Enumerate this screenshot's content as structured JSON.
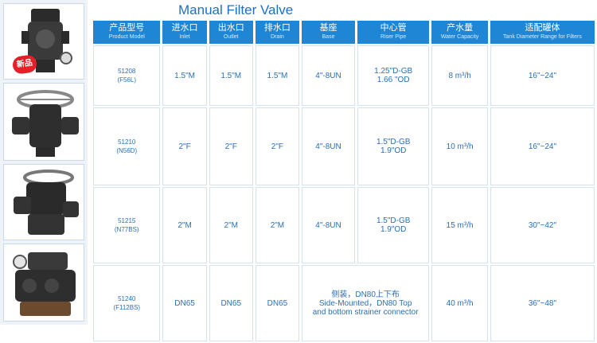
{
  "title": "Manual Filter Valve",
  "badge": "新品",
  "headers": [
    {
      "zh": "产品型号",
      "en": "Product Model"
    },
    {
      "zh": "进水口",
      "en": "Inlet"
    },
    {
      "zh": "出水口",
      "en": "Outlet"
    },
    {
      "zh": "排水口",
      "en": "Drain"
    },
    {
      "zh": "基座",
      "en": "Base"
    },
    {
      "zh": "中心管",
      "en": "Riser Pipe"
    },
    {
      "zh": "产水量",
      "en": "Water Capacity"
    },
    {
      "zh": "适配罐体",
      "en": "Tank Diameter Range for Filters"
    }
  ],
  "rows": [
    {
      "model": "51208",
      "code": "(F56L)",
      "inlet": "1.5\"M",
      "outlet": "1.5\"M",
      "drain": "1.5\"M",
      "base": "4\"-8UN",
      "riser1": "1.25\"D-GB",
      "riser2": "1.66 \"OD",
      "capacity": "8 m³/h",
      "tank": "16\"~24\""
    },
    {
      "model": "51210",
      "code": "(N56D)",
      "inlet": "2\"F",
      "outlet": "2\"F",
      "drain": "2\"F",
      "base": "4\"-8UN",
      "riser1": "1.5\"D-GB",
      "riser2": "1.9\"OD",
      "capacity": "10 m³/h",
      "tank": "16\"~24\""
    },
    {
      "model": "51215",
      "code": "(N77BS)",
      "inlet": "2\"M",
      "outlet": "2\"M",
      "drain": "2\"M",
      "base": "4\"-8UN",
      "riser1": "1.5\"D-GB",
      "riser2": "1.9\"OD",
      "capacity": "15 m³/h",
      "tank": "30\"~42\""
    },
    {
      "model": "51240",
      "code": "(F112BS)",
      "inlet": "DN65",
      "outlet": "DN65",
      "drain": "DN65",
      "merged1": "侧装，DN80上下布",
      "merged2": "Side-Mounted，DN80 Top",
      "merged3": "and bottom strainer connector",
      "capacity": "40 m³/h",
      "tank": "36\"~48\""
    }
  ]
}
